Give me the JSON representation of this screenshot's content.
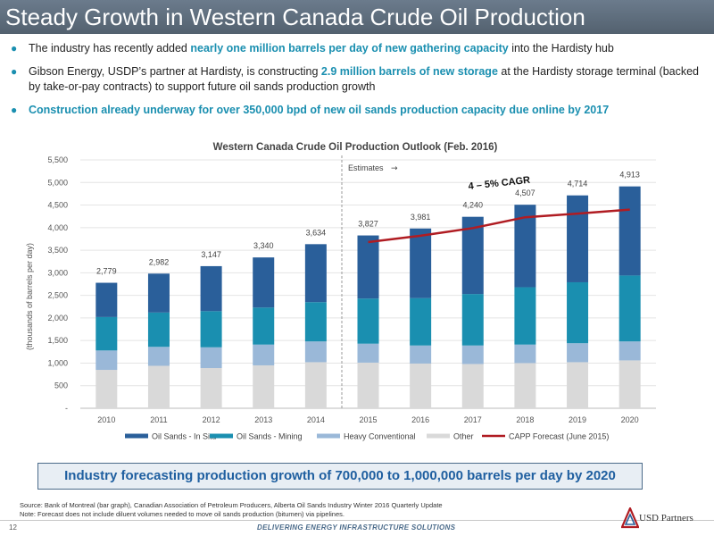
{
  "header": {
    "title": "Steady Growth in Western Canada Crude Oil Production"
  },
  "bullets": [
    {
      "before": "The industry has recently added ",
      "highlight": "nearly one million barrels per day of new gathering capacity",
      "after": " into the Hardisty hub"
    },
    {
      "before": "Gibson Energy, USDP’s partner at Hardisty, is constructing ",
      "highlight": "2.9 million barrels of new storage",
      "after": " at the Hardisty storage terminal (backed by take-or-pay contracts) to support future oil sands production growth"
    },
    {
      "before": "",
      "highlight": "Construction already underway for over 350,000 bpd of new oil sands production capacity due online by 2017",
      "after": ""
    }
  ],
  "chart_data": {
    "type": "bar",
    "stacked": true,
    "title": "Western Canada Crude Oil Production Outlook (Feb. 2016)",
    "xlabel": "",
    "ylabel": "(thousands of barrels per day)",
    "ylim": [
      0,
      5500
    ],
    "yticks": [
      0,
      500,
      1000,
      1500,
      2000,
      2500,
      3000,
      3500,
      4000,
      4500,
      5000,
      5500
    ],
    "ytick_labels": [
      "-",
      "500",
      "1,000",
      "1,500",
      "2,000",
      "2,500",
      "3,000",
      "3,500",
      "4,000",
      "4,500",
      "5,000",
      "5,500"
    ],
    "grid": true,
    "legend_position": "bottom",
    "categories": [
      "2010",
      "2011",
      "2012",
      "2013",
      "2014",
      "2015",
      "2016",
      "2017",
      "2018",
      "2019",
      "2020"
    ],
    "series": [
      {
        "name": "Other",
        "color": "#d9d9d9",
        "values": [
          850,
          940,
          890,
          950,
          1020,
          1010,
          990,
          980,
          1000,
          1020,
          1060
        ]
      },
      {
        "name": "Heavy Conventional",
        "color": "#9ab8d8",
        "values": [
          430,
          420,
          460,
          460,
          460,
          420,
          400,
          410,
          410,
          420,
          420
        ]
      },
      {
        "name": "Oil Sands - Mining",
        "color": "#1a8fb0",
        "values": [
          740,
          760,
          800,
          820,
          870,
          1000,
          1050,
          1140,
          1270,
          1350,
          1460
        ]
      },
      {
        "name": "Oil Sands - In Situ",
        "color": "#2a5f9a",
        "values": [
          759,
          862,
          997,
          1110,
          1284,
          1397,
          1541,
          1710,
          1827,
          1924,
          1973
        ]
      }
    ],
    "totals": [
      "2,779",
      "2,982",
      "3,147",
      "3,340",
      "3,634",
      "3,827",
      "3,981",
      "4,240",
      "4,507",
      "4,714",
      "4,913"
    ],
    "forecast_line": {
      "name": "CAPP Forecast (June 2015)",
      "color": "#b01c22",
      "x": [
        "2015",
        "2016",
        "2017",
        "2018",
        "2019",
        "2020"
      ],
      "values": [
        3680,
        3820,
        3990,
        4230,
        4310,
        4400
      ]
    },
    "legend_order": [
      "Oil Sands - In Situ",
      "Oil Sands - Mining",
      "Heavy Conventional",
      "Other",
      "CAPP Forecast (June 2015)"
    ],
    "annotations": {
      "estimates": "Estimates",
      "cagr": "4 – 5% CAGR"
    }
  },
  "banner": {
    "text": "Industry forecasting production growth of 700,000 to 1,000,000 barrels per day by 2020"
  },
  "source": {
    "line1": "Source:  Bank of Montreal (bar graph), Canadian Association of Petroleum Producers, Alberta Oil Sands Industry Winter 2016 Quarterly Update",
    "line2": "Note:  Forecast does not include diluent volumes needed to move oil sands production (bitumen) via pipelines."
  },
  "footer": {
    "page": "12",
    "tagline": "DELIVERING ENERGY INFRASTRUCTURE SOLUTIONS",
    "logo": "USD Partners"
  },
  "colors": {
    "accent": "#1a8fb0",
    "title_bar": "#5f6e7d",
    "banner_text": "#1f5fa0"
  }
}
